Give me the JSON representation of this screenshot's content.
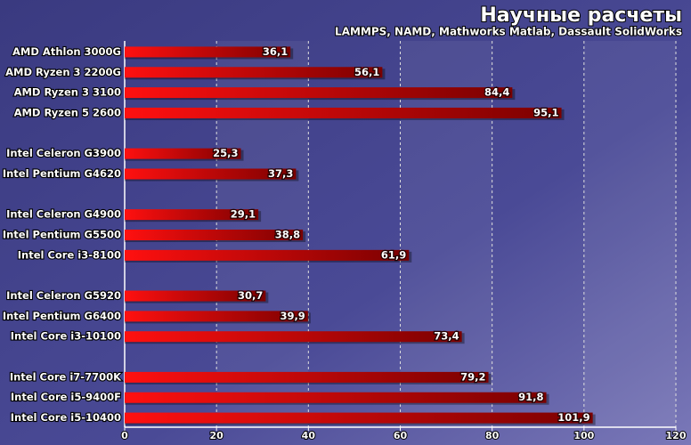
{
  "chart_data": {
    "type": "bar",
    "orientation": "horizontal",
    "title": "Научные расчеты",
    "subtitle": "LAMMPS, NAMD, Mathworks Matlab, Dassault SolidWorks",
    "categories": [
      "AMD Athlon 3000G",
      "AMD Ryzen 3 2200G",
      "AMD Ryzen 3 3100",
      "AMD Ryzen 5 2600",
      null,
      "Intel Celeron G3900",
      "Intel Pentium G4620",
      null,
      "Intel Celeron G4900",
      "Intel Pentium G5500",
      "Intel Core i3-8100",
      null,
      "Intel Celeron G5920",
      "Intel Pentium G6400",
      "Intel Core i3-10100",
      null,
      "Intel Core i7-7700K",
      "Intel Core i5-9400F",
      "Intel Core i5-10400"
    ],
    "values": [
      36.1,
      56.1,
      84.4,
      95.1,
      null,
      25.3,
      37.3,
      null,
      29.1,
      38.8,
      61.9,
      null,
      30.7,
      39.9,
      73.4,
      null,
      79.2,
      91.8,
      101.9
    ],
    "value_labels": [
      "36,1",
      "56,1",
      "84,4",
      "95,1",
      null,
      "25,3",
      "37,3",
      null,
      "29,1",
      "38,8",
      "61,9",
      null,
      "30,7",
      "39,9",
      "73,4",
      null,
      "79,2",
      "91,8",
      "101,9"
    ],
    "color": "#ff1010",
    "xlim": [
      0,
      120
    ],
    "xticks": [
      0,
      20,
      40,
      60,
      80,
      100,
      120
    ],
    "grid": true
  }
}
